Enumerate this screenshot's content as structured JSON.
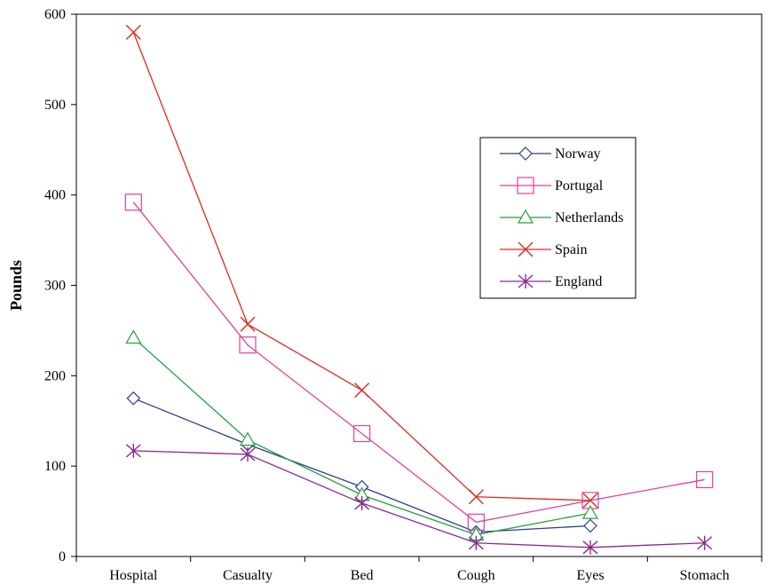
{
  "chart_data": {
    "type": "line",
    "title": "",
    "xlabel": "",
    "ylabel": "Pounds",
    "ylim": [
      0,
      600
    ],
    "yticks": [
      0,
      100,
      200,
      300,
      400,
      500,
      600
    ],
    "categories": [
      "Hospital",
      "Casualty",
      "Bed",
      "Cough",
      "Eyes",
      "Stomach"
    ],
    "grid": false,
    "legend_position": "right",
    "series": [
      {
        "name": "Norway",
        "color": "#2e3a8c",
        "marker": "diamond",
        "values": [
          175,
          124,
          77,
          27,
          34,
          null
        ]
      },
      {
        "name": "Portugal",
        "color": "#e0409a",
        "marker": "square",
        "values": [
          392,
          234,
          136,
          38,
          62,
          85
        ]
      },
      {
        "name": "Netherlands",
        "color": "#22a03a",
        "marker": "triangle",
        "values": [
          242,
          129,
          68,
          24,
          48,
          null
        ]
      },
      {
        "name": "Spain",
        "color": "#e02a1e",
        "marker": "x",
        "values": [
          580,
          257,
          184,
          66,
          62,
          null
        ]
      },
      {
        "name": "England",
        "color": "#8a2a8a",
        "marker": "asterisk",
        "values": [
          117,
          113,
          59,
          15,
          10,
          15
        ]
      }
    ]
  }
}
